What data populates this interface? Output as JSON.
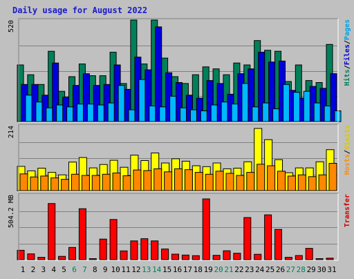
{
  "chart_data": {
    "type": "bar",
    "title": "Daily usage for August 2022",
    "categories": [
      "1",
      "2",
      "3",
      "4",
      "5",
      "6",
      "7",
      "8",
      "9",
      "10",
      "11",
      "12",
      "13",
      "14",
      "15",
      "16",
      "17",
      "18",
      "19",
      "20",
      "21",
      "22",
      "23",
      "24",
      "25",
      "26",
      "27",
      "28",
      "29",
      "30",
      "31"
    ],
    "weekend_days": [
      "6",
      "7",
      "13",
      "14",
      "20",
      "21",
      "27",
      "28"
    ],
    "panels": [
      {
        "id": "top",
        "max_label": "520",
        "ylim": [
          0,
          520
        ],
        "side_labels": [
          {
            "text": "Hits",
            "color": "#00805a"
          },
          {
            "text": "Files",
            "color": "#0000cc"
          },
          {
            "text": "Pages",
            "color": "#00a0e0"
          }
        ],
        "series": [
          {
            "name": "Hits",
            "color": "#00805a",
            "values": [
              290,
              240,
              190,
              360,
              155,
              230,
              295,
              235,
              235,
              355,
              195,
              520,
              295,
              520,
              325,
              230,
              195,
              240,
              280,
              270,
              240,
              300,
              290,
              415,
              365,
              360,
              205,
              290,
              210,
              200,
              395
            ]
          },
          {
            "name": "Files",
            "color": "#0000dd",
            "values": [
              190,
              190,
              135,
              300,
              125,
              185,
              245,
              185,
              190,
              290,
              165,
              330,
              265,
              485,
              250,
              200,
              135,
              120,
              210,
              195,
              140,
              245,
              270,
              355,
              305,
              310,
              160,
              120,
              180,
              170,
              245
            ]
          },
          {
            "name": "Pages",
            "color": "#00b8ff",
            "values": [
              135,
              100,
              70,
              85,
              75,
              90,
              90,
              85,
              95,
              185,
              60,
              215,
              80,
              75,
              130,
              70,
              60,
              55,
              85,
              100,
              90,
              195,
              75,
              95,
              65,
              190,
              150,
              155,
              95,
              80,
              55
            ]
          }
        ]
      },
      {
        "id": "middle",
        "max_label": "214",
        "ylim": [
          0,
          214
        ],
        "side_labels": [
          {
            "text": "Hosts",
            "color": "#ff8c00"
          },
          {
            "text": "Visits",
            "color": "#d8c800"
          }
        ],
        "series": [
          {
            "name": "Visits",
            "color": "#ffff00",
            "values": [
              80,
              65,
              74,
              60,
              52,
              94,
              109,
              75,
              86,
              100,
              77,
              117,
              99,
              124,
              91,
              105,
              97,
              82,
              79,
              91,
              72,
              74,
              95,
              205,
              168,
              102,
              59,
              75,
              75,
              95,
              135
            ]
          },
          {
            "name": "Hosts",
            "color": "#ff8800",
            "values": [
              55,
              45,
              48,
              42,
              37,
              54,
              50,
              50,
              54,
              58,
              49,
              68,
              66,
              72,
              62,
              72,
              69,
              60,
              54,
              64,
              57,
              50,
              60,
              87,
              82,
              64,
              48,
              52,
              46,
              52,
              90
            ]
          }
        ]
      },
      {
        "id": "bottom",
        "max_label": "504.2 MB",
        "ylim": [
          0,
          504.2
        ],
        "side_labels": [
          {
            "text": "Transfer",
            "color": "#cc0000"
          }
        ],
        "series": [
          {
            "name": "Transfer",
            "color": "#ff0000",
            "values": [
              73,
              45,
              18,
              436,
              26,
              95,
              396,
              8,
              160,
              312,
              68,
              146,
              163,
              146,
              83,
              43,
              36,
              31,
              472,
              34,
              69,
              50,
              327,
              42,
              348,
              235,
              18,
              32,
              88,
              8,
              12
            ]
          }
        ]
      }
    ]
  }
}
